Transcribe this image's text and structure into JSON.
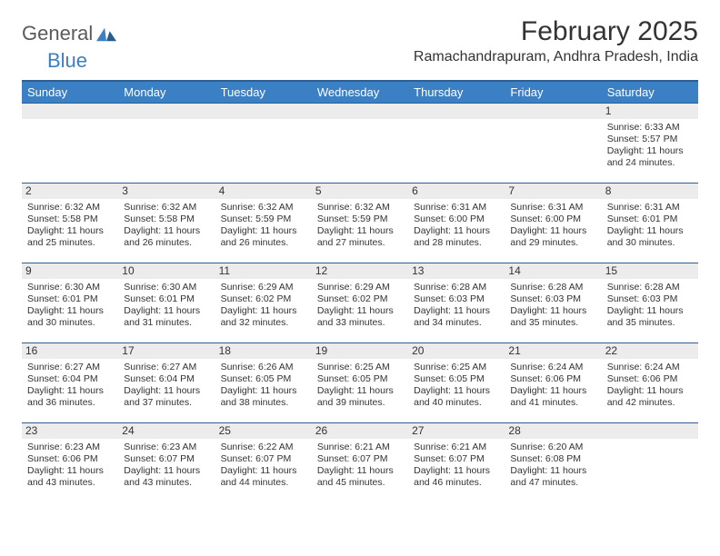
{
  "logo": {
    "word1": "General",
    "word2": "Blue"
  },
  "header": {
    "month_title": "February 2025",
    "location": "Ramachandrapuram, Andhra Pradesh, India"
  },
  "colors": {
    "header_bg": "#3b7fc4",
    "header_border": "#2f5f8f",
    "daynum_bg": "#ececec",
    "text": "#333333",
    "page_bg": "#ffffff"
  },
  "daynames": [
    "Sunday",
    "Monday",
    "Tuesday",
    "Wednesday",
    "Thursday",
    "Friday",
    "Saturday"
  ],
  "weeks": [
    [
      null,
      null,
      null,
      null,
      null,
      null,
      {
        "n": "1",
        "sunrise": "6:33 AM",
        "sunset": "5:57 PM",
        "dl": "11 hours and 24 minutes."
      }
    ],
    [
      {
        "n": "2",
        "sunrise": "6:32 AM",
        "sunset": "5:58 PM",
        "dl": "11 hours and 25 minutes."
      },
      {
        "n": "3",
        "sunrise": "6:32 AM",
        "sunset": "5:58 PM",
        "dl": "11 hours and 26 minutes."
      },
      {
        "n": "4",
        "sunrise": "6:32 AM",
        "sunset": "5:59 PM",
        "dl": "11 hours and 26 minutes."
      },
      {
        "n": "5",
        "sunrise": "6:32 AM",
        "sunset": "5:59 PM",
        "dl": "11 hours and 27 minutes."
      },
      {
        "n": "6",
        "sunrise": "6:31 AM",
        "sunset": "6:00 PM",
        "dl": "11 hours and 28 minutes."
      },
      {
        "n": "7",
        "sunrise": "6:31 AM",
        "sunset": "6:00 PM",
        "dl": "11 hours and 29 minutes."
      },
      {
        "n": "8",
        "sunrise": "6:31 AM",
        "sunset": "6:01 PM",
        "dl": "11 hours and 30 minutes."
      }
    ],
    [
      {
        "n": "9",
        "sunrise": "6:30 AM",
        "sunset": "6:01 PM",
        "dl": "11 hours and 30 minutes."
      },
      {
        "n": "10",
        "sunrise": "6:30 AM",
        "sunset": "6:01 PM",
        "dl": "11 hours and 31 minutes."
      },
      {
        "n": "11",
        "sunrise": "6:29 AM",
        "sunset": "6:02 PM",
        "dl": "11 hours and 32 minutes."
      },
      {
        "n": "12",
        "sunrise": "6:29 AM",
        "sunset": "6:02 PM",
        "dl": "11 hours and 33 minutes."
      },
      {
        "n": "13",
        "sunrise": "6:28 AM",
        "sunset": "6:03 PM",
        "dl": "11 hours and 34 minutes."
      },
      {
        "n": "14",
        "sunrise": "6:28 AM",
        "sunset": "6:03 PM",
        "dl": "11 hours and 35 minutes."
      },
      {
        "n": "15",
        "sunrise": "6:28 AM",
        "sunset": "6:03 PM",
        "dl": "11 hours and 35 minutes."
      }
    ],
    [
      {
        "n": "16",
        "sunrise": "6:27 AM",
        "sunset": "6:04 PM",
        "dl": "11 hours and 36 minutes."
      },
      {
        "n": "17",
        "sunrise": "6:27 AM",
        "sunset": "6:04 PM",
        "dl": "11 hours and 37 minutes."
      },
      {
        "n": "18",
        "sunrise": "6:26 AM",
        "sunset": "6:05 PM",
        "dl": "11 hours and 38 minutes."
      },
      {
        "n": "19",
        "sunrise": "6:25 AM",
        "sunset": "6:05 PM",
        "dl": "11 hours and 39 minutes."
      },
      {
        "n": "20",
        "sunrise": "6:25 AM",
        "sunset": "6:05 PM",
        "dl": "11 hours and 40 minutes."
      },
      {
        "n": "21",
        "sunrise": "6:24 AM",
        "sunset": "6:06 PM",
        "dl": "11 hours and 41 minutes."
      },
      {
        "n": "22",
        "sunrise": "6:24 AM",
        "sunset": "6:06 PM",
        "dl": "11 hours and 42 minutes."
      }
    ],
    [
      {
        "n": "23",
        "sunrise": "6:23 AM",
        "sunset": "6:06 PM",
        "dl": "11 hours and 43 minutes."
      },
      {
        "n": "24",
        "sunrise": "6:23 AM",
        "sunset": "6:07 PM",
        "dl": "11 hours and 43 minutes."
      },
      {
        "n": "25",
        "sunrise": "6:22 AM",
        "sunset": "6:07 PM",
        "dl": "11 hours and 44 minutes."
      },
      {
        "n": "26",
        "sunrise": "6:21 AM",
        "sunset": "6:07 PM",
        "dl": "11 hours and 45 minutes."
      },
      {
        "n": "27",
        "sunrise": "6:21 AM",
        "sunset": "6:07 PM",
        "dl": "11 hours and 46 minutes."
      },
      {
        "n": "28",
        "sunrise": "6:20 AM",
        "sunset": "6:08 PM",
        "dl": "11 hours and 47 minutes."
      },
      null
    ]
  ],
  "labels": {
    "sunrise": "Sunrise: ",
    "sunset": "Sunset: ",
    "daylight": "Daylight: "
  }
}
